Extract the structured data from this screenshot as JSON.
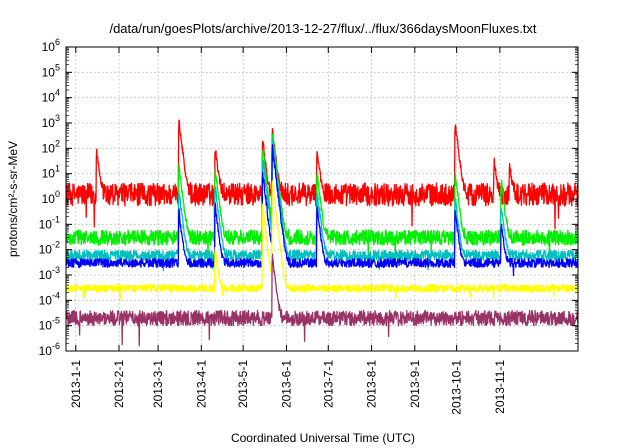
{
  "chart_data": {
    "type": "line",
    "title": "/data/run/goesPlots/archive/2013-12-27/flux/../flux/366daysMoonFluxes.txt",
    "xlabel": "Coordinated Universal Time (UTC)",
    "ylabel": "protons/cm²-s-sr-MeV",
    "yscale": "log",
    "ylim": [
      1e-06,
      1000000.0
    ],
    "xlim": [
      "2012-12-25",
      "2013-12-27"
    ],
    "grid": true,
    "y_ticks": [
      {
        "base": "10",
        "exp": "-6",
        "value": 1e-06
      },
      {
        "base": "10",
        "exp": "-5",
        "value": 1e-05
      },
      {
        "base": "10",
        "exp": "-4",
        "value": 0.0001
      },
      {
        "base": "10",
        "exp": "-3",
        "value": 0.001
      },
      {
        "base": "10",
        "exp": "-2",
        "value": 0.01
      },
      {
        "base": "10",
        "exp": "-1",
        "value": 0.1
      },
      {
        "base": "10",
        "exp": "0",
        "value": 1
      },
      {
        "base": "10",
        "exp": "1",
        "value": 10
      },
      {
        "base": "10",
        "exp": "2",
        "value": 100
      },
      {
        "base": "10",
        "exp": "3",
        "value": 1000
      },
      {
        "base": "10",
        "exp": "4",
        "value": 10000
      },
      {
        "base": "10",
        "exp": "5",
        "value": 100000
      },
      {
        "base": "10",
        "exp": "6",
        "value": 1000000
      }
    ],
    "x_ticks": [
      {
        "label": "2013-1-1",
        "date": "2013-01-01"
      },
      {
        "label": "2013-2-1",
        "date": "2013-02-01"
      },
      {
        "label": "2013-3-1",
        "date": "2013-03-01"
      },
      {
        "label": "2013-4-1",
        "date": "2013-04-01"
      },
      {
        "label": "2013-5-1",
        "date": "2013-05-01"
      },
      {
        "label": "2013-6-1",
        "date": "2013-06-01"
      },
      {
        "label": "2013-7-1",
        "date": "2013-07-01"
      },
      {
        "label": "2013-8-1",
        "date": "2013-08-01"
      },
      {
        "label": "2013-9-1",
        "date": "2013-09-01"
      },
      {
        "label": "2013-10-1",
        "date": "2013-10-01"
      },
      {
        "label": "2013-11-1",
        "date": "2013-11-01"
      }
    ],
    "series": [
      {
        "color": "#ff0000",
        "base": 1.5,
        "noise": 0.45,
        "min": 1e-06,
        "events": [
          {
            "date": "2013-01-16",
            "peak": 80
          },
          {
            "date": "2013-03-16",
            "peak": 1200
          },
          {
            "date": "2013-04-11",
            "peak": 100
          },
          {
            "date": "2013-05-15",
            "peak": 200
          },
          {
            "date": "2013-05-22",
            "peak": 500
          },
          {
            "date": "2013-06-23",
            "peak": 80
          },
          {
            "date": "2013-09-30",
            "peak": 1000
          },
          {
            "date": "2013-10-28",
            "peak": 30
          },
          {
            "date": "2013-11-08",
            "peak": 20
          }
        ]
      },
      {
        "color": "#00ee00",
        "base": 0.03,
        "noise": 0.3,
        "min": 1e-06,
        "events": [
          {
            "date": "2013-03-16",
            "peak": 20
          },
          {
            "date": "2013-04-11",
            "peak": 15
          },
          {
            "date": "2013-05-15",
            "peak": 100
          },
          {
            "date": "2013-05-22",
            "peak": 400
          },
          {
            "date": "2013-06-23",
            "peak": 10
          },
          {
            "date": "2013-09-30",
            "peak": 10
          },
          {
            "date": "2013-11-02",
            "peak": 5
          }
        ]
      },
      {
        "color": "#00bfbf",
        "base": 0.006,
        "noise": 0.2,
        "min": 1e-06,
        "events": [
          {
            "date": "2013-03-16",
            "peak": 2
          },
          {
            "date": "2013-04-11",
            "peak": 3
          },
          {
            "date": "2013-05-15",
            "peak": 40
          },
          {
            "date": "2013-05-22",
            "peak": 200
          },
          {
            "date": "2013-06-23",
            "peak": 2
          },
          {
            "date": "2013-09-30",
            "peak": 1
          },
          {
            "date": "2013-11-02",
            "peak": 0.5
          }
        ]
      },
      {
        "color": "#0000ff",
        "base": 0.003,
        "noise": 0.18,
        "min": 1e-06,
        "events": [
          {
            "date": "2013-03-16",
            "peak": 0.3
          },
          {
            "date": "2013-04-11",
            "peak": 0.5
          },
          {
            "date": "2013-05-15",
            "peak": 10
          },
          {
            "date": "2013-05-22",
            "peak": 100
          },
          {
            "date": "2013-06-23",
            "peak": 0.5
          },
          {
            "date": "2013-09-30",
            "peak": 0.3
          },
          {
            "date": "2013-11-02",
            "peak": 0.1
          }
        ]
      },
      {
        "color": "#ffff00",
        "base": 0.0003,
        "noise": 0.15,
        "min": 1e-06,
        "events": [
          {
            "date": "2013-04-11",
            "peak": 0.01
          },
          {
            "date": "2013-05-15",
            "peak": 0.5
          },
          {
            "date": "2013-05-22",
            "peak": 5
          }
        ]
      },
      {
        "color": "#993366",
        "base": 2e-05,
        "noise": 0.3,
        "min": 1e-06,
        "events": [
          {
            "date": "2013-05-22",
            "peak": 0.005
          }
        ]
      }
    ]
  }
}
